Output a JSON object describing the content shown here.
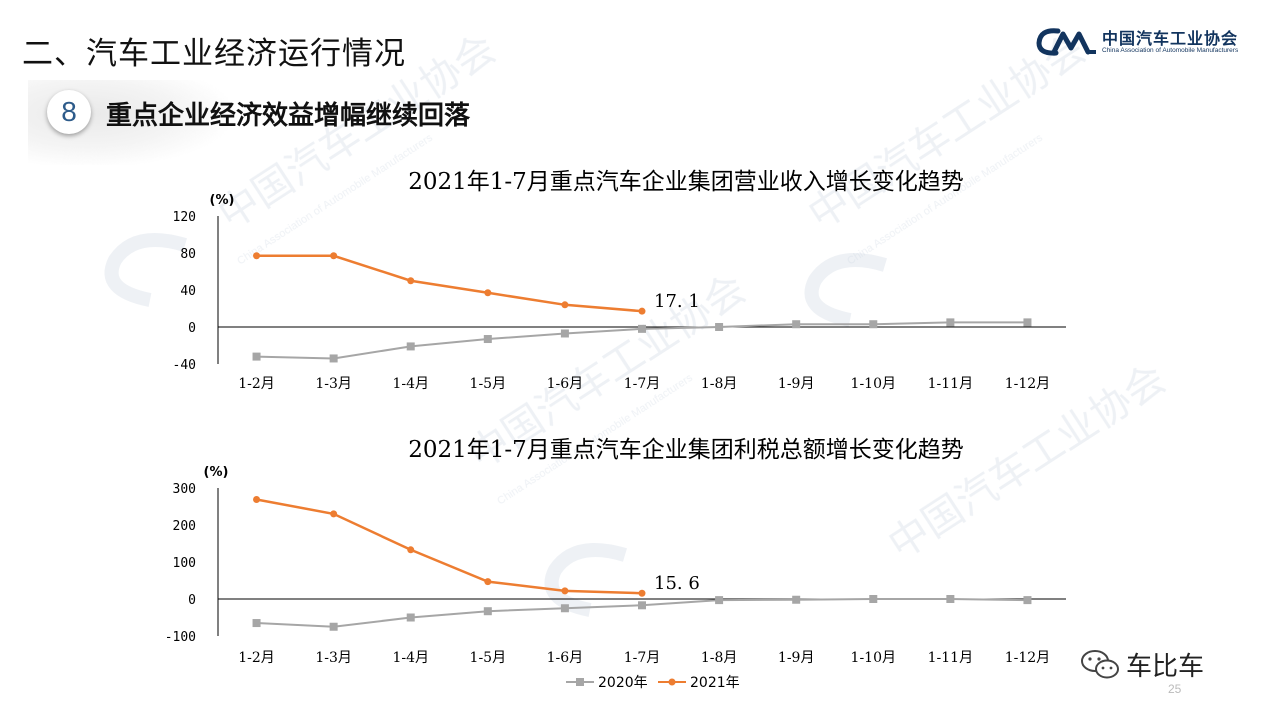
{
  "slide": {
    "title": "二、汽车工业经济运行情况",
    "badge_number": "8",
    "subtitle": "重点企业经济效益增幅继续回落",
    "page_number": "25"
  },
  "logo": {
    "cn": "中国汽车工业协会",
    "en": "China Association of Automobile Manufacturers",
    "color": "#12345e"
  },
  "watermark_text": {
    "cn": "中国汽车工业协会",
    "en": "China Association of Automobile Manufacturers"
  },
  "wechat": {
    "label": "车比车"
  },
  "legend": {
    "items": [
      "2020年",
      "2021年"
    ]
  },
  "colors": {
    "2020": "#a6a6a6",
    "2021": "#ed7d31",
    "axis": "#000000"
  },
  "chart_data": [
    {
      "type": "line",
      "title": "2021年1-7月重点汽车企业集团营业收入增长变化趋势",
      "ylabel": "(%)",
      "categories": [
        "1-2月",
        "1-3月",
        "1-4月",
        "1-5月",
        "1-6月",
        "1-7月",
        "1-8月",
        "1-9月",
        "1-10月",
        "1-11月",
        "1-12月"
      ],
      "yticks": [
        120,
        80,
        40,
        0,
        -40
      ],
      "ylim": [
        -40,
        120
      ],
      "series": [
        {
          "name": "2020年",
          "values": [
            -32,
            -34,
            -21,
            -13,
            -7,
            -2,
            0,
            3,
            3,
            5,
            5
          ]
        },
        {
          "name": "2021年",
          "values": [
            77,
            77,
            50,
            37,
            24,
            17.1,
            null,
            null,
            null,
            null,
            null
          ]
        }
      ],
      "annotation": "17. 1"
    },
    {
      "type": "line",
      "title": "2021年1-7月重点汽车企业集团利税总额增长变化趋势",
      "ylabel": "(%)",
      "categories": [
        "1-2月",
        "1-3月",
        "1-4月",
        "1-5月",
        "1-6月",
        "1-7月",
        "1-8月",
        "1-9月",
        "1-10月",
        "1-11月",
        "1-12月"
      ],
      "yticks": [
        300,
        200,
        100,
        0,
        -100
      ],
      "ylim": [
        -100,
        300
      ],
      "series": [
        {
          "name": "2020年",
          "values": [
            -65,
            -75,
            -50,
            -33,
            -25,
            -17,
            -3,
            -2,
            0,
            0,
            -3
          ]
        },
        {
          "name": "2021年",
          "values": [
            269,
            230,
            133,
            47,
            22,
            15.6,
            null,
            null,
            null,
            null,
            null
          ]
        }
      ],
      "annotation": "15. 6"
    }
  ]
}
